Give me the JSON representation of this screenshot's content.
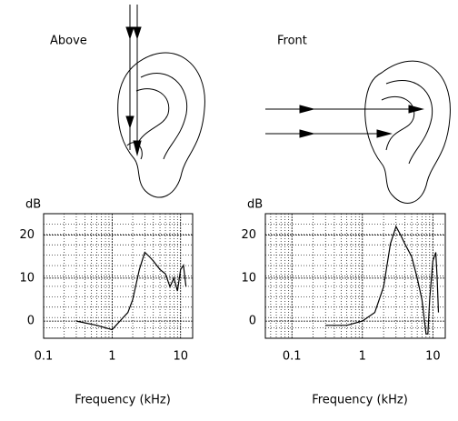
{
  "chart_data": [
    {
      "type": "line",
      "title": "Above",
      "ylabel": "dB",
      "xlabel": "Frequency  (kHz)",
      "log_x": true,
      "grid": true,
      "xlim": [
        0.1,
        15
      ],
      "xticks": [
        {
          "value": 0.1,
          "label": "0.1"
        },
        1,
        10
      ],
      "ylim": [
        -4,
        25
      ],
      "yticks": [
        0,
        10,
        20
      ],
      "series": [
        {
          "color": "#000000",
          "x": [
            0.3,
            0.6,
            1,
            1.3,
            1.7,
            2,
            2.5,
            3,
            3.5,
            4,
            5,
            6,
            7,
            8,
            9,
            10,
            11,
            12
          ],
          "values": [
            0,
            -1,
            -2,
            0,
            2,
            5,
            12,
            16,
            15,
            14,
            12,
            11,
            8,
            10,
            7,
            12,
            13,
            8
          ]
        }
      ]
    },
    {
      "type": "line",
      "title": "Front",
      "ylabel": "dB",
      "xlabel": "Frequency  (kHz)",
      "log_x": true,
      "grid": true,
      "xlim": [
        0.042,
        15
      ],
      "xticks": [
        {
          "value": 0.1,
          "label": "0.1"
        },
        1,
        10
      ],
      "ylim": [
        -4,
        25
      ],
      "yticks": [
        0,
        10,
        20
      ],
      "series": [
        {
          "color": "#000000",
          "x": [
            0.3,
            0.6,
            1,
            1.5,
            2,
            2.5,
            3,
            3.5,
            4,
            5,
            6,
            7,
            8,
            8.5,
            9,
            10,
            11,
            11.5,
            12
          ],
          "values": [
            -1,
            -1,
            0,
            2,
            8,
            18,
            22,
            20,
            18,
            15,
            10,
            5,
            -3,
            -3,
            5,
            14,
            16,
            10,
            2
          ]
        }
      ]
    }
  ]
}
